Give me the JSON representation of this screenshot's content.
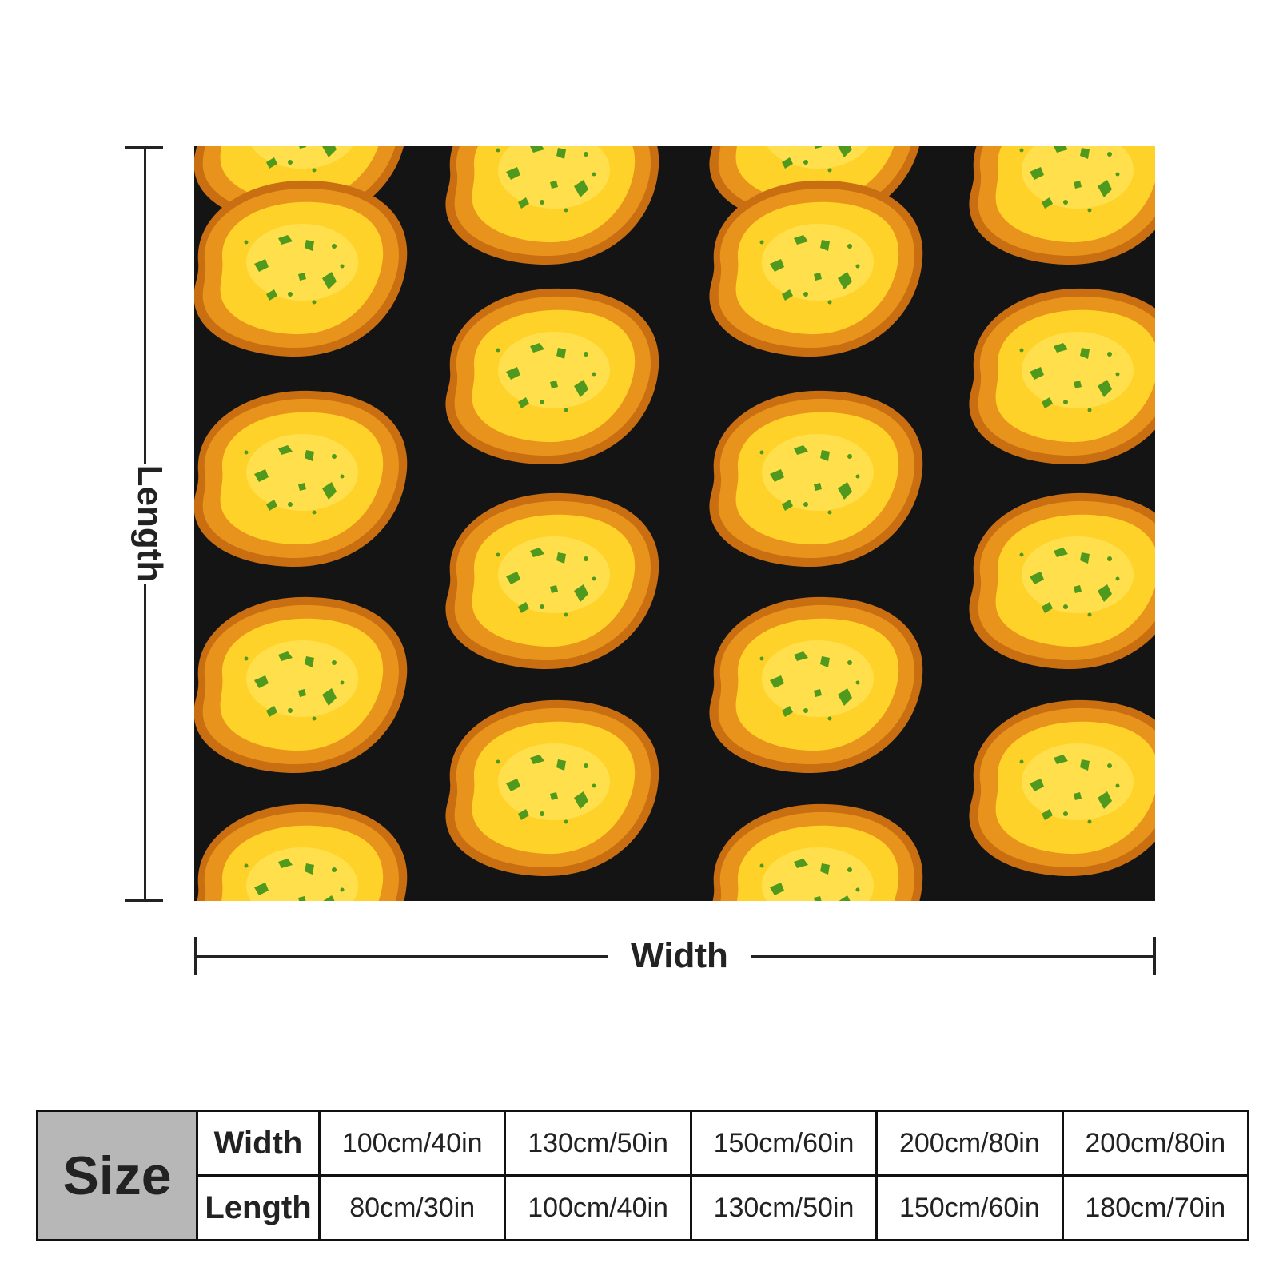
{
  "dimensions": {
    "length_label": "Length",
    "width_label": "Width"
  },
  "size_table": {
    "header": "Size",
    "rows": [
      {
        "label": "Width",
        "values": [
          "100cm/40in",
          "130cm/50in",
          "150cm/60in",
          "200cm/80in",
          "200cm/80in"
        ]
      },
      {
        "label": "Length",
        "values": [
          "80cm/30in",
          "100cm/40in",
          "130cm/50in",
          "150cm/60in",
          "180cm/70in"
        ]
      }
    ]
  },
  "colors": {
    "background": "#141414",
    "crust": "#e8941c",
    "crust_edge": "#c96f12",
    "butter": "#ffd22a",
    "butter_light": "#ffe45a",
    "herb": "#4f9a1e",
    "table_header": "#b7b7b7"
  }
}
